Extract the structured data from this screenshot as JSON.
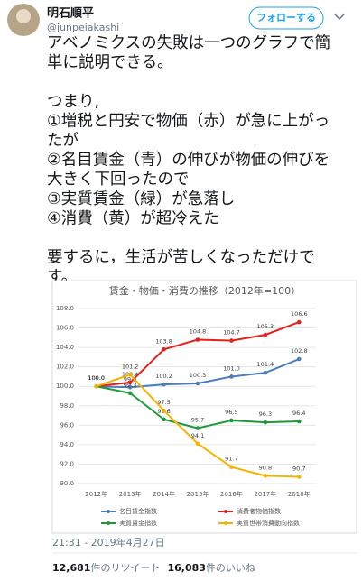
{
  "tweet": {
    "name": "明石順平",
    "handle": "@junpeiakashi",
    "follow": "フォローする",
    "paragraphs": [
      [
        "アベノミクスの失敗は一つのグラフで簡",
        "単に説明できる。"
      ],
      [
        "つまり,",
        "①増税と円安で物価（赤）が急に上がっ",
        "たが",
        "②名目賃金（青）の伸びが物価の伸びを",
        "大きく下回ったので",
        "③実質賃金（緑）が急落し",
        "④消費（黄）が超冷えた"
      ],
      [
        "要するに，生活が苦しくなっただけで",
        "す。"
      ]
    ],
    "timestamp": "21:31 - 2019年4月27日",
    "retweets": "12,681",
    "retweets_label": "件のリツイート",
    "likes": "16,083",
    "likes_label": "件のいいね"
  },
  "chart_data": {
    "type": "line",
    "title": "賃金・物価・消費の推移（2012年=100）",
    "categories": [
      "2012年",
      "2013年",
      "2014年",
      "2015年",
      "2016年",
      "2017年",
      "2018年"
    ],
    "ylim": [
      90,
      108
    ],
    "yticks": [
      {
        "value": 90,
        "label": "90.0"
      },
      {
        "value": 92,
        "label": "92.0"
      },
      {
        "value": 94,
        "label": "94.0"
      },
      {
        "value": 96,
        "label": "96.0"
      },
      {
        "value": 98,
        "label": "98.0"
      },
      {
        "value": 100,
        "label": "100.0"
      },
      {
        "value": 102,
        "label": "102.0"
      },
      {
        "value": 104,
        "label": "104.0"
      },
      {
        "value": 106,
        "label": "106.0"
      },
      {
        "value": 108,
        "label": "108.0"
      }
    ],
    "grid": true,
    "series": [
      {
        "name": "名目賃金指数",
        "color": "#4a7ebb",
        "values": [
          100,
          99.9,
          100.2,
          100.3,
          101.0,
          101.4,
          102.8
        ],
        "value_labels": [
          "100.0",
          "99.9",
          "100.2",
          "100.3",
          "101.0",
          "101.4",
          "102.8"
        ]
      },
      {
        "name": "消費者物価指数",
        "color": "#e8201c",
        "values": [
          100,
          100.4,
          103.8,
          104.8,
          104.7,
          105.3,
          106.6
        ],
        "value_labels": [
          "100.0",
          "100.4",
          "103.8",
          "104.8",
          "104.7",
          "105.3",
          "106.6"
        ]
      },
      {
        "name": "実質賃金指数",
        "color": "#1b9a3c",
        "values": [
          100,
          99.3,
          96.6,
          95.7,
          96.5,
          96.3,
          96.4
        ],
        "value_labels": [
          "100.0",
          "99.3",
          "96.6",
          "95.7",
          "96.5",
          "96.3",
          "96.4"
        ]
      },
      {
        "name": "実質世帯消費動向指数",
        "color": "#f6b400",
        "values": [
          100,
          101.2,
          97.5,
          94.1,
          91.7,
          90.8,
          90.7
        ],
        "value_labels": [
          "100.0",
          "101.2",
          "97.5",
          "94.1",
          "91.7",
          "90.8",
          "90.7"
        ]
      }
    ]
  }
}
